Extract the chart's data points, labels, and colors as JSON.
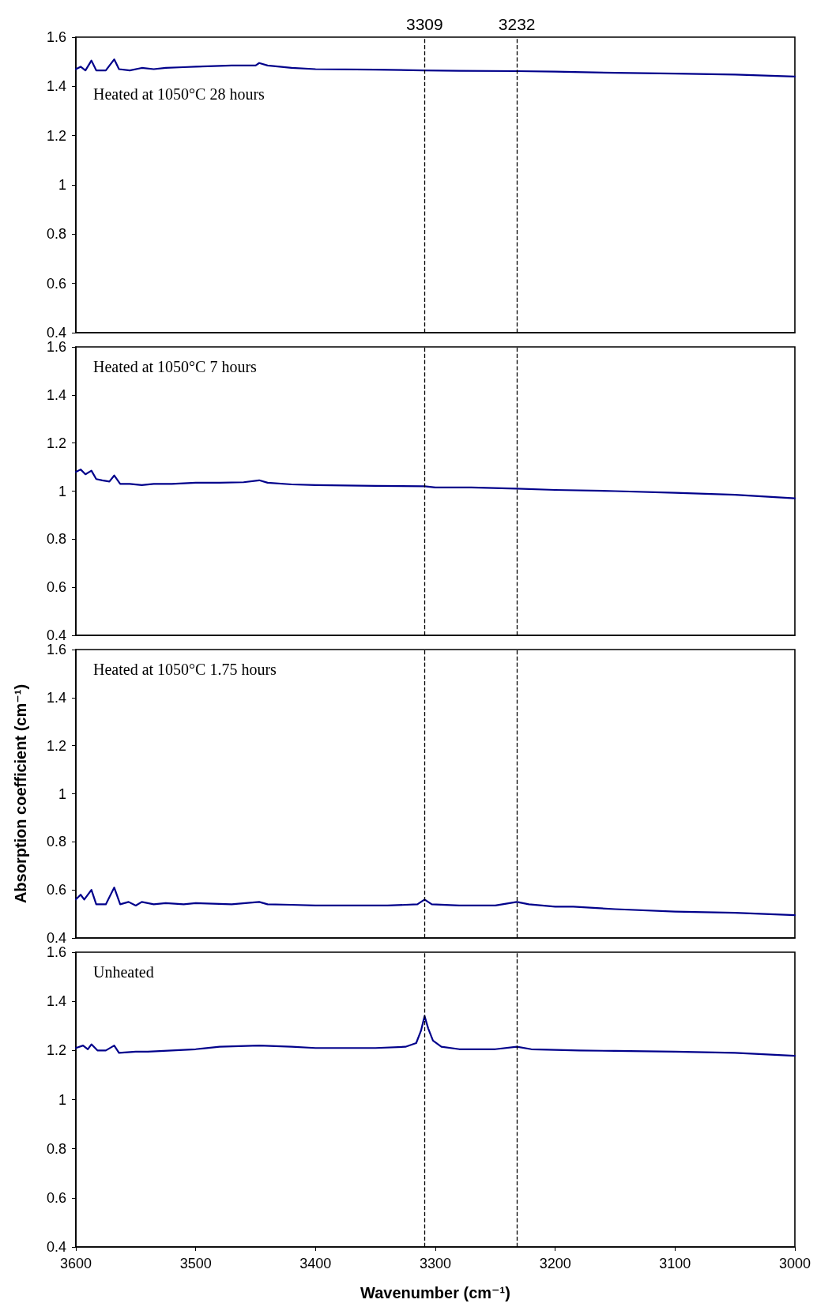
{
  "chart_data": [
    {
      "type": "line",
      "annotations": [
        "Heated at 1050°C 28 hours"
      ],
      "x": [
        3600,
        3596,
        3592,
        3587,
        3583,
        3575,
        3568,
        3564,
        3555,
        3545,
        3535,
        3525,
        3510,
        3500,
        3490,
        3470,
        3450,
        3447,
        3440,
        3420,
        3400,
        3350,
        3309,
        3280,
        3232,
        3200,
        3150,
        3100,
        3050,
        3000
      ],
      "series": [
        {
          "color": "#00008b",
          "values": [
            1.47,
            1.48,
            1.465,
            1.505,
            1.465,
            1.465,
            1.51,
            1.47,
            1.465,
            1.475,
            1.47,
            1.475,
            1.478,
            1.48,
            1.482,
            1.485,
            1.485,
            1.495,
            1.485,
            1.475,
            1.47,
            1.468,
            1.465,
            1.463,
            1.462,
            1.46,
            1.455,
            1.452,
            1.448,
            1.44
          ]
        }
      ],
      "xlim": [
        3600,
        3000
      ],
      "ylim": [
        0.4,
        1.6
      ],
      "yticks": [
        0.4,
        0.6,
        0.8,
        1,
        1.2,
        1.4,
        1.6
      ],
      "tick_labels": "y",
      "marker": "none",
      "line_style": "solid",
      "grid": false,
      "ref_lines": [
        {
          "axis": "x",
          "value": 3309,
          "label": "3309"
        },
        {
          "axis": "x",
          "value": 3232,
          "label": "3232"
        }
      ]
    },
    {
      "type": "line",
      "annotations": [
        "Heated at 1050°C 7 hours"
      ],
      "x": [
        3600,
        3596,
        3592,
        3587,
        3583,
        3578,
        3572,
        3568,
        3563,
        3555,
        3545,
        3535,
        3520,
        3500,
        3480,
        3460,
        3447,
        3440,
        3420,
        3400,
        3350,
        3309,
        3300,
        3270,
        3232,
        3200,
        3150,
        3100,
        3050,
        3000
      ],
      "series": [
        {
          "color": "#00008b",
          "values": [
            1.08,
            1.09,
            1.07,
            1.085,
            1.05,
            1.045,
            1.04,
            1.065,
            1.03,
            1.03,
            1.025,
            1.03,
            1.03,
            1.035,
            1.035,
            1.037,
            1.045,
            1.035,
            1.028,
            1.025,
            1.022,
            1.02,
            1.015,
            1.015,
            1.01,
            1.005,
            1,
            0.993,
            0.985,
            0.97
          ]
        }
      ],
      "xlim": [
        3600,
        3000
      ],
      "ylim": [
        0.4,
        1.6
      ],
      "yticks": [
        0.4,
        0.6,
        0.8,
        1,
        1.2,
        1.4,
        1.6
      ],
      "tick_labels": "y",
      "marker": "none",
      "line_style": "solid",
      "grid": false,
      "ref_lines": [
        {
          "axis": "x",
          "value": 3309
        },
        {
          "axis": "x",
          "value": 3232
        }
      ]
    },
    {
      "type": "line",
      "ylabel": "Absorption coefficient (cm⁻¹)",
      "annotations": [
        "Heated at 1050°C 1.75 hours"
      ],
      "x": [
        3600,
        3596,
        3593,
        3587,
        3583,
        3575,
        3568,
        3563,
        3556,
        3550,
        3545,
        3535,
        3525,
        3510,
        3500,
        3470,
        3447,
        3440,
        3420,
        3400,
        3340,
        3315,
        3309,
        3303,
        3280,
        3250,
        3232,
        3222,
        3200,
        3185,
        3150,
        3100,
        3050,
        3000
      ],
      "series": [
        {
          "color": "#00008b",
          "values": [
            0.56,
            0.58,
            0.56,
            0.6,
            0.54,
            0.54,
            0.61,
            0.54,
            0.55,
            0.535,
            0.55,
            0.54,
            0.545,
            0.54,
            0.545,
            0.54,
            0.55,
            0.54,
            0.538,
            0.535,
            0.535,
            0.54,
            0.56,
            0.54,
            0.535,
            0.535,
            0.55,
            0.54,
            0.53,
            0.53,
            0.52,
            0.51,
            0.505,
            0.495
          ]
        }
      ],
      "xlim": [
        3600,
        3000
      ],
      "ylim": [
        0.4,
        1.6
      ],
      "yticks": [
        0.4,
        0.6,
        0.8,
        1,
        1.2,
        1.4,
        1.6
      ],
      "tick_labels": "y",
      "marker": "none",
      "line_style": "solid",
      "grid": false,
      "ref_lines": [
        {
          "axis": "x",
          "value": 3309
        },
        {
          "axis": "x",
          "value": 3232
        }
      ]
    },
    {
      "type": "line",
      "xlabel": "Wavenumber (cm⁻¹)",
      "annotations": [
        "Unheated"
      ],
      "x": [
        3600,
        3594,
        3590,
        3587,
        3582,
        3575,
        3568,
        3564,
        3550,
        3540,
        3520,
        3500,
        3480,
        3447,
        3420,
        3400,
        3350,
        3325,
        3316,
        3312,
        3309,
        3306,
        3302,
        3295,
        3280,
        3250,
        3232,
        3220,
        3180,
        3150,
        3100,
        3050,
        3000
      ],
      "series": [
        {
          "color": "#00008b",
          "values": [
            1.21,
            1.22,
            1.205,
            1.225,
            1.2,
            1.2,
            1.22,
            1.19,
            1.195,
            1.195,
            1.2,
            1.205,
            1.215,
            1.22,
            1.215,
            1.21,
            1.21,
            1.215,
            1.23,
            1.28,
            1.34,
            1.29,
            1.24,
            1.215,
            1.205,
            1.205,
            1.215,
            1.205,
            1.2,
            1.198,
            1.195,
            1.19,
            1.178
          ]
        }
      ],
      "xlim": [
        3600,
        3000
      ],
      "xticks": [
        3600,
        3500,
        3400,
        3300,
        3200,
        3100,
        3000
      ],
      "ylim": [
        0.4,
        1.6
      ],
      "yticks": [
        0.4,
        0.6,
        0.8,
        1,
        1.2,
        1.4,
        1.6
      ],
      "marker": "none",
      "line_style": "solid",
      "grid": false,
      "ref_lines": [
        {
          "axis": "x",
          "value": 3309
        },
        {
          "axis": "x",
          "value": 3232
        }
      ]
    }
  ]
}
